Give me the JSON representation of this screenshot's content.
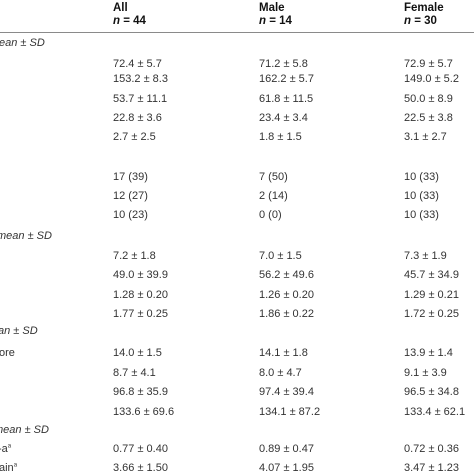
{
  "header": {
    "columns": [
      {
        "title": "All",
        "n_label": "n",
        "n_eq": " = 44"
      },
      {
        "title": "Male",
        "n_label": "n",
        "n_eq": " = 14"
      },
      {
        "title": "Female",
        "n_label": "n",
        "n_eq": " = 30"
      }
    ]
  },
  "sections": [
    {
      "label": "ean ± SD",
      "rows": [
        {
          "label": "",
          "values": [
            "72.4 ± 5.7",
            "71.2 ± 5.8",
            "72.9 ± 5.7"
          ]
        },
        {
          "label": "",
          "values": [
            "153.2 ± 8.3",
            "162.2 ± 5.7",
            "149.0 ± 5.2"
          ]
        },
        {
          "label": "",
          "values": [
            "53.7 ± 11.1",
            "61.8 ± 11.5",
            "50.0 ± 8.9"
          ]
        },
        {
          "label": "",
          "values": [
            "22.8 ± 3.6",
            "23.4 ± 3.4",
            "22.5 ± 3.8"
          ]
        },
        {
          "label": "",
          "values": [
            "2.7 ± 2.5",
            "1.8 ± 1.5",
            "3.1 ± 2.7"
          ]
        },
        {
          "label": "",
          "values": [
            "17 (39)",
            "7 (50)",
            "10 (33)"
          ]
        },
        {
          "label": "",
          "values": [
            "12 (27)",
            "2 (14)",
            "10 (33)"
          ]
        },
        {
          "label": "",
          "values": [
            "10 (23)",
            "0 (0)",
            "10 (33)"
          ]
        }
      ]
    },
    {
      "label": "mean ± SD",
      "rows": [
        {
          "label": "",
          "values": [
            "7.2 ± 1.8",
            "7.0 ± 1.5",
            "7.3 ± 1.9"
          ]
        },
        {
          "label": "",
          "values": [
            "49.0 ± 39.9",
            "56.2 ± 49.6",
            "45.7 ± 34.9"
          ]
        },
        {
          "label": "",
          "values": [
            "1.28 ± 0.20",
            "1.26 ± 0.20",
            "1.29 ± 0.21"
          ]
        },
        {
          "label": "",
          "values": [
            "1.77 ± 0.25",
            "1.86 ± 0.22",
            "1.72 ± 0.25"
          ]
        }
      ]
    },
    {
      "label": "an ± SD",
      "rows": [
        {
          "label": "ore",
          "values": [
            "14.0 ± 1.5",
            "14.1 ± 1.8",
            "13.9 ± 1.4"
          ]
        },
        {
          "label": "",
          "values": [
            "8.7 ± 4.1",
            "8.0 ± 4.7",
            "9.1 ± 3.9"
          ]
        },
        {
          "label": "",
          "values": [
            "96.8 ± 35.9",
            "97.4 ± 39.4",
            "96.5 ± 34.8"
          ]
        },
        {
          "label": "",
          "values": [
            "133.6 ± 69.6",
            "134.1 ± 87.2",
            "133.4 ± 62.1"
          ]
        }
      ]
    },
    {
      "label": "mean ± SD",
      "rows": [
        {
          "label": "-a",
          "sup": "a",
          "values": [
            "0.77 ± 0.40",
            "0.89 ± 0.47",
            "0.72 ± 0.36"
          ]
        },
        {
          "label": "ain",
          "sup": "a",
          "values": [
            "3.66 ± 1.50",
            "4.07 ± 1.95",
            "3.47 ± 1.23"
          ]
        }
      ]
    }
  ]
}
